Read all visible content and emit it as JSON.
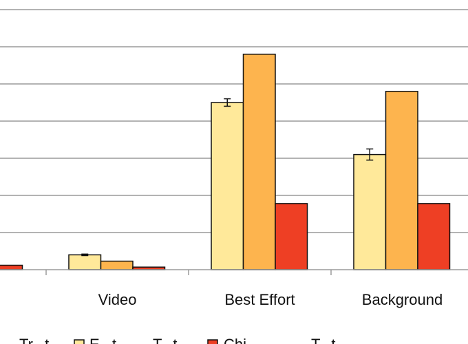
{
  "chart_data": {
    "type": "bar",
    "title": "",
    "xlabel": "",
    "ylabel": "",
    "grid": true,
    "legend_position": "bottom",
    "categories": [
      "",
      "Video",
      "Best Effort",
      "Background"
    ],
    "ylim": [
      0,
      7
    ],
    "series": [
      {
        "color": "#FFE99A",
        "values": [
          null,
          0.4,
          4.5,
          3.1
        ],
        "error": [
          null,
          0.02,
          0.1,
          0.15
        ]
      },
      {
        "color": "#FDB44E",
        "values": [
          null,
          0.23,
          5.8,
          4.8
        ]
      },
      {
        "color": "#EE3F24",
        "values": [
          0.12,
          0.07,
          1.78,
          1.78
        ]
      }
    ],
    "legend_fragments": [
      "Tr...t",
      "E...t",
      "T...t",
      "Chi...",
      "T...t"
    ],
    "colors": {
      "grid": "#9A9A9A",
      "axis": "#9A9A9A",
      "bar_border": "#111111"
    }
  }
}
